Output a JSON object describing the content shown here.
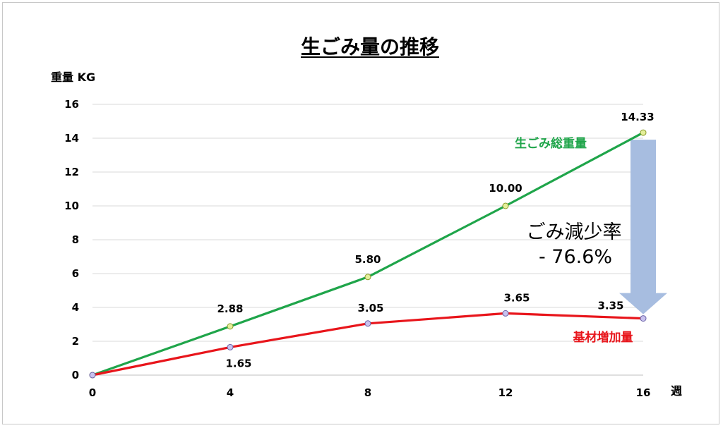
{
  "chart_data": {
    "type": "line",
    "title": "生ごみ量の推移",
    "ylabel": "重量 KG",
    "xlabel": "週",
    "x": [
      0,
      4,
      8,
      12,
      16
    ],
    "xlim": [
      0,
      16
    ],
    "ylim": [
      0,
      16
    ],
    "yticks": [
      0,
      2,
      4,
      6,
      8,
      10,
      12,
      14,
      16
    ],
    "grid": true,
    "series": [
      {
        "name": "生ごみ総重量",
        "color": "#1fa54a",
        "x": [
          0,
          4,
          8,
          12,
          16
        ],
        "values": [
          0,
          2.88,
          5.8,
          10.0,
          14.33
        ],
        "labels": [
          "",
          "2.88",
          "5.80",
          "10.00",
          "14.33"
        ]
      },
      {
        "name": "基材増加量",
        "color": "#e8151b",
        "x": [
          0,
          4,
          8,
          12,
          16
        ],
        "values": [
          0,
          1.65,
          3.05,
          3.65,
          3.35
        ],
        "labels": [
          "",
          "1.65",
          "3.05",
          "3.65",
          "3.35"
        ]
      }
    ],
    "annotation": {
      "line1": "ごみ減少率",
      "line2": "- 76.6%",
      "arrow_color": "#a7bde0"
    }
  }
}
